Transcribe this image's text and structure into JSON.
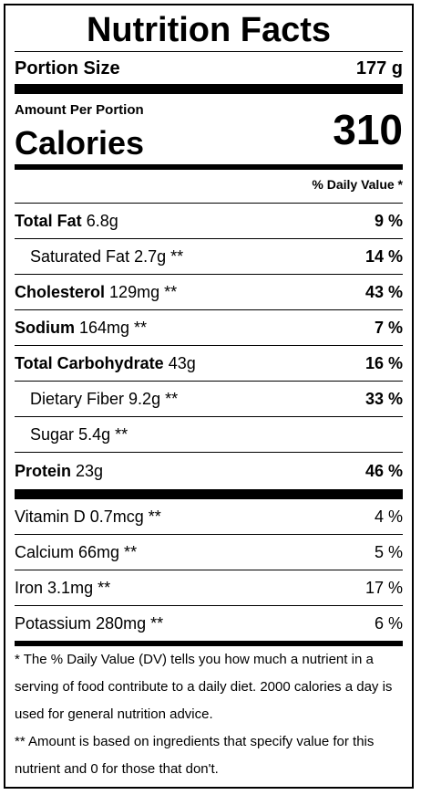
{
  "title": "Nutrition Facts",
  "portion": {
    "label": "Portion Size",
    "value": "177 g"
  },
  "amount_per_portion": "Amount Per Portion",
  "calories": {
    "label": "Calories",
    "value": "310"
  },
  "daily_value_header": "% Daily Value *",
  "nutrients": [
    {
      "name": "Total Fat",
      "amount": "6.8g",
      "pct": "9 %"
    },
    {
      "name": "Saturated Fat",
      "amount": "2.7g **",
      "pct": "14 %"
    },
    {
      "name": "Cholesterol",
      "amount": "129mg **",
      "pct": "43 %"
    },
    {
      "name": "Sodium",
      "amount": "164mg **",
      "pct": "7 %"
    },
    {
      "name": "Total Carbohydrate",
      "amount": "43g",
      "pct": "16 %"
    },
    {
      "name": "Dietary Fiber",
      "amount": "9.2g **",
      "pct": "33 %"
    },
    {
      "name": "Sugar",
      "amount": "5.4g **",
      "pct": ""
    },
    {
      "name": "Protein",
      "amount": "23g",
      "pct": "46 %"
    }
  ],
  "vitamins": [
    {
      "name": "Vitamin D",
      "amount": "0.7mcg **",
      "pct": "4 %"
    },
    {
      "name": "Calcium",
      "amount": "66mg **",
      "pct": "5 %"
    },
    {
      "name": "Iron",
      "amount": "3.1mg **",
      "pct": "17 %"
    },
    {
      "name": "Potassium",
      "amount": "280mg **",
      "pct": "6 %"
    }
  ],
  "footnotes": {
    "dv": "* The % Daily Value (DV) tells you how much a nutrient in a serving of food contribute to a daily diet. 2000 calories a day is used for general nutrition advice.",
    "amount": "** Amount is based on ingredients that specify value for this nutrient and 0 for those that don't."
  }
}
